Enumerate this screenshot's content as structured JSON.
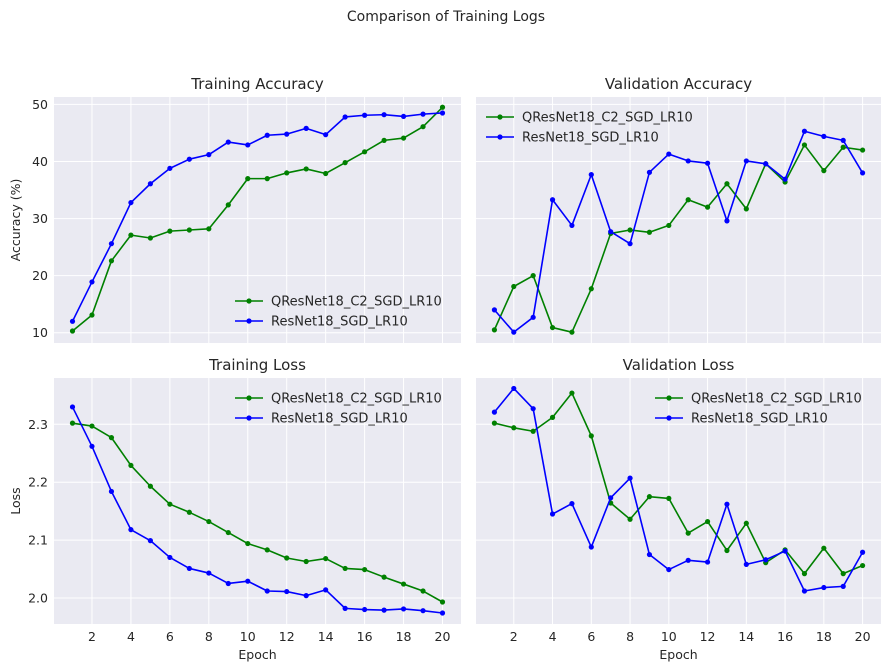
{
  "figure": {
    "suptitle": "Comparison of Training Logs"
  },
  "legend": {
    "series": [
      {
        "name": "QResNet18_C2_SGD_LR10",
        "color": "#008000"
      },
      {
        "name": "ResNet18_SGD_LR10",
        "color": "#0000ff"
      }
    ]
  },
  "chart_data": [
    {
      "type": "line",
      "title": "Training Accuracy",
      "xlabel": "",
      "ylabel": "Accuracy (%)",
      "x": [
        1,
        2,
        3,
        4,
        5,
        6,
        7,
        8,
        9,
        10,
        11,
        12,
        13,
        14,
        15,
        16,
        17,
        18,
        19,
        20
      ],
      "xlim": [
        0.05,
        20.95
      ],
      "ylim": [
        8.2,
        51.3
      ],
      "xticks": [
        2,
        4,
        6,
        8,
        10,
        12,
        14,
        16,
        18,
        20
      ],
      "yticks": [
        10,
        20,
        30,
        40,
        50
      ],
      "ytick_labels": [
        "10",
        "20",
        "30",
        "40",
        "50"
      ],
      "show_xticklabels": false,
      "show_yticklabels": true,
      "grid": true,
      "legend_position": "lower-right",
      "series": [
        {
          "name": "QResNet18_C2_SGD_LR10",
          "color": "#008000",
          "values": [
            10.3,
            13.1,
            22.6,
            27.1,
            26.6,
            27.8,
            28.0,
            28.2,
            32.4,
            37.0,
            37.0,
            38.0,
            38.7,
            37.9,
            39.8,
            41.7,
            43.7,
            44.1,
            46.1,
            49.5
          ]
        },
        {
          "name": "ResNet18_SGD_LR10",
          "color": "#0000ff",
          "values": [
            12.0,
            18.9,
            25.6,
            32.8,
            36.1,
            38.8,
            40.4,
            41.2,
            43.4,
            42.9,
            44.6,
            44.8,
            45.8,
            44.7,
            47.8,
            48.1,
            48.2,
            47.9,
            48.3,
            48.5
          ]
        }
      ]
    },
    {
      "type": "line",
      "title": "Validation Accuracy",
      "xlabel": "",
      "ylabel": "",
      "x": [
        1,
        2,
        3,
        4,
        5,
        6,
        7,
        8,
        9,
        10,
        11,
        12,
        13,
        14,
        15,
        16,
        17,
        18,
        19,
        20
      ],
      "xlim": [
        0.05,
        20.95
      ],
      "ylim": [
        8.2,
        51.3
      ],
      "xticks": [
        2,
        4,
        6,
        8,
        10,
        12,
        14,
        16,
        18,
        20
      ],
      "yticks": [
        10,
        20,
        30,
        40,
        50
      ],
      "ytick_labels": [
        "10",
        "20",
        "30",
        "40",
        "50"
      ],
      "show_xticklabels": false,
      "show_yticklabels": false,
      "grid": true,
      "legend_position": "upper-left",
      "series": [
        {
          "name": "QResNet18_C2_SGD_LR10",
          "color": "#008000",
          "values": [
            10.5,
            18.1,
            20.0,
            10.9,
            10.1,
            17.7,
            27.4,
            28.0,
            27.6,
            28.8,
            33.3,
            32.0,
            36.1,
            31.7,
            39.6,
            36.4,
            42.9,
            38.4,
            42.5,
            42.0
          ]
        },
        {
          "name": "ResNet18_SGD_LR10",
          "color": "#0000ff",
          "values": [
            14.0,
            10.1,
            12.7,
            33.3,
            28.8,
            37.7,
            27.7,
            25.6,
            38.1,
            41.3,
            40.1,
            39.7,
            29.6,
            40.1,
            39.6,
            36.9,
            45.3,
            44.4,
            43.7,
            38.0
          ]
        }
      ]
    },
    {
      "type": "line",
      "title": "Training Loss",
      "xlabel": "Epoch",
      "ylabel": "Loss",
      "x": [
        1,
        2,
        3,
        4,
        5,
        6,
        7,
        8,
        9,
        10,
        11,
        12,
        13,
        14,
        15,
        16,
        17,
        18,
        19,
        20
      ],
      "xlim": [
        0.05,
        20.95
      ],
      "ylim": [
        1.955,
        2.38
      ],
      "xticks": [
        2,
        4,
        6,
        8,
        10,
        12,
        14,
        16,
        18,
        20
      ],
      "xtick_labels": [
        "2",
        "4",
        "6",
        "8",
        "10",
        "12",
        "14",
        "16",
        "18",
        "20"
      ],
      "yticks": [
        2.0,
        2.1,
        2.2,
        2.3
      ],
      "ytick_labels": [
        "2.0",
        "2.1",
        "2.2",
        "2.3"
      ],
      "show_xticklabels": true,
      "show_yticklabels": true,
      "grid": true,
      "legend_position": "upper-right",
      "series": [
        {
          "name": "QResNet18_C2_SGD_LR10",
          "color": "#008000",
          "values": [
            2.302,
            2.297,
            2.277,
            2.229,
            2.193,
            2.162,
            2.148,
            2.132,
            2.113,
            2.094,
            2.083,
            2.069,
            2.063,
            2.068,
            2.051,
            2.049,
            2.036,
            2.024,
            2.012,
            1.993
          ]
        },
        {
          "name": "ResNet18_SGD_LR10",
          "color": "#0000ff",
          "values": [
            2.33,
            2.262,
            2.184,
            2.118,
            2.099,
            2.07,
            2.051,
            2.043,
            2.025,
            2.029,
            2.012,
            2.011,
            2.004,
            2.014,
            1.982,
            1.98,
            1.979,
            1.981,
            1.978,
            1.974
          ]
        }
      ]
    },
    {
      "type": "line",
      "title": "Validation Loss",
      "xlabel": "Epoch",
      "ylabel": "",
      "x": [
        1,
        2,
        3,
        4,
        5,
        6,
        7,
        8,
        9,
        10,
        11,
        12,
        13,
        14,
        15,
        16,
        17,
        18,
        19,
        20
      ],
      "xlim": [
        0.05,
        20.95
      ],
      "ylim": [
        1.955,
        2.38
      ],
      "xticks": [
        2,
        4,
        6,
        8,
        10,
        12,
        14,
        16,
        18,
        20
      ],
      "xtick_labels": [
        "2",
        "4",
        "6",
        "8",
        "10",
        "12",
        "14",
        "16",
        "18",
        "20"
      ],
      "yticks": [
        2.0,
        2.1,
        2.2,
        2.3
      ],
      "ytick_labels": [
        "2.0",
        "2.1",
        "2.2",
        "2.3"
      ],
      "show_xticklabels": true,
      "show_yticklabels": false,
      "grid": true,
      "legend_position": "upper-right",
      "series": [
        {
          "name": "QResNet18_C2_SGD_LR10",
          "color": "#008000",
          "values": [
            2.302,
            2.294,
            2.288,
            2.312,
            2.354,
            2.28,
            2.164,
            2.136,
            2.175,
            2.172,
            2.112,
            2.132,
            2.082,
            2.129,
            2.061,
            2.083,
            2.042,
            2.086,
            2.042,
            2.056
          ]
        },
        {
          "name": "ResNet18_SGD_LR10",
          "color": "#0000ff",
          "values": [
            2.321,
            2.362,
            2.327,
            2.145,
            2.163,
            2.088,
            2.173,
            2.207,
            2.075,
            2.049,
            2.065,
            2.062,
            2.162,
            2.058,
            2.066,
            2.081,
            2.012,
            2.018,
            2.02,
            2.079
          ]
        }
      ]
    }
  ]
}
